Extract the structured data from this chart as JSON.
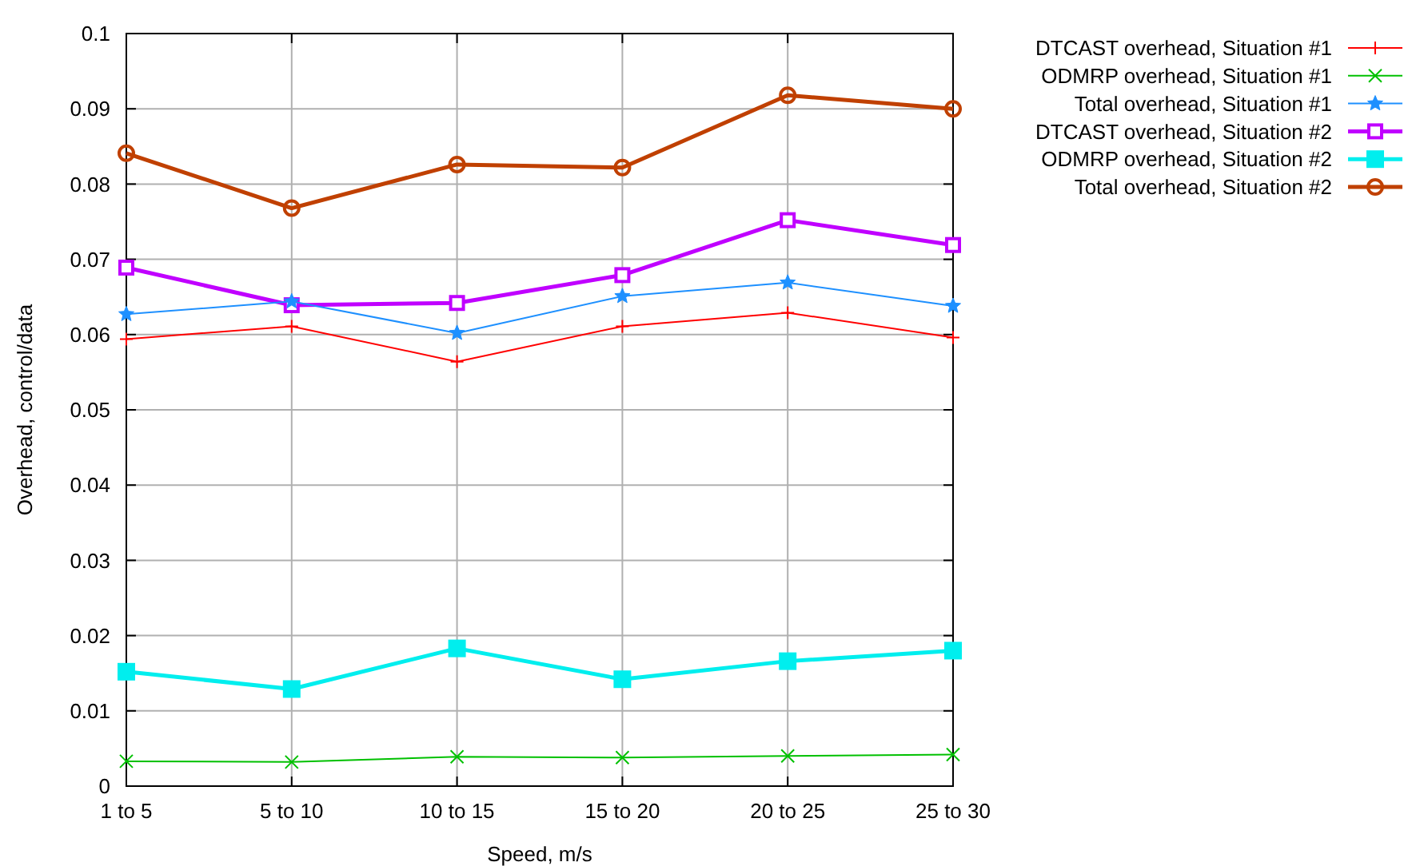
{
  "chart_data": {
    "type": "line",
    "xlabel": "Speed, m/s",
    "ylabel": "Overhead, control/data",
    "categories": [
      "1 to 5",
      "5 to 10",
      "10 to 15",
      "15 to 20",
      "20 to 25",
      "25 to 30"
    ],
    "ylim": [
      0,
      0.1
    ],
    "yticks": [
      0,
      0.01,
      0.02,
      0.03,
      0.04,
      0.05,
      0.06,
      0.07,
      0.08,
      0.09,
      0.1
    ],
    "grid": true,
    "legend": "top right",
    "line_style": "solid",
    "series": [
      {
        "name": "DTCAST overhead, Situation #1",
        "color": "#ff0000",
        "marker": "plus",
        "values": [
          0.0594,
          0.0611,
          0.0564,
          0.0611,
          0.0629,
          0.0596
        ]
      },
      {
        "name": "ODMRP overhead, Situation #1",
        "color": "#00c000",
        "marker": "cross",
        "values": [
          0.0033,
          0.0032,
          0.0039,
          0.0038,
          0.004,
          0.0042
        ]
      },
      {
        "name": "Total overhead, Situation #1",
        "color": "#1e90ff",
        "marker": "star",
        "values": [
          0.0627,
          0.0644,
          0.0602,
          0.0651,
          0.0669,
          0.0638
        ]
      },
      {
        "name": "DTCAST overhead, Situation #2",
        "color": "#c000ff",
        "marker": "square",
        "values": [
          0.0689,
          0.0639,
          0.0642,
          0.0679,
          0.0752,
          0.0719
        ]
      },
      {
        "name": "ODMRP overhead, Situation #2",
        "color": "#00eeee",
        "marker": "square-filled",
        "values": [
          0.0152,
          0.0129,
          0.0183,
          0.0142,
          0.0166,
          0.018
        ]
      },
      {
        "name": "Total overhead, Situation #2",
        "color": "#c04000",
        "marker": "circle",
        "values": [
          0.0841,
          0.0768,
          0.0826,
          0.0822,
          0.0918,
          0.09
        ]
      }
    ]
  }
}
